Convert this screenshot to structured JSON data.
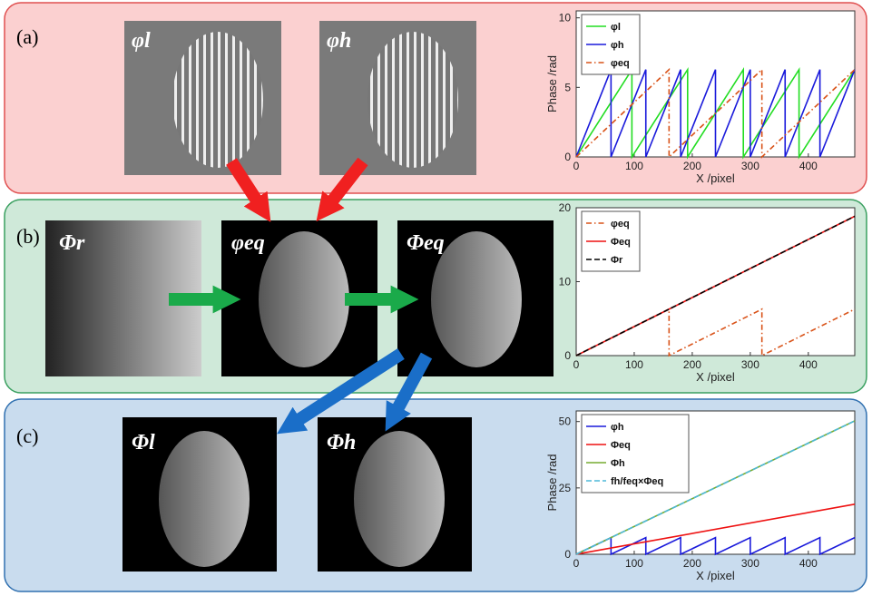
{
  "panels": [
    {
      "label": "(a)",
      "images": [
        "φl",
        "φh"
      ]
    },
    {
      "label": "(b)",
      "images": [
        "Φr",
        "φeq",
        "Φeq"
      ]
    },
    {
      "label": "(c)",
      "images": [
        "Φl",
        "Φh"
      ]
    }
  ],
  "chart_data": [
    {
      "type": "line",
      "xlabel": "X /pixel",
      "ylabel": "Phase /rad",
      "xlim": [
        0,
        480
      ],
      "ylim": [
        0,
        10.5
      ],
      "xticks": [
        0,
        100,
        200,
        300,
        400
      ],
      "yticks": [
        0,
        5,
        10
      ],
      "series": [
        {
          "name": "φl",
          "color": "#22dd22",
          "style": "solid",
          "x": [
            0,
            96,
            96,
            192,
            192,
            288,
            288,
            384,
            384,
            480
          ],
          "values": [
            0,
            6.28,
            0,
            6.28,
            0,
            6.28,
            0,
            6.28,
            0,
            6.28
          ]
        },
        {
          "name": "φh",
          "color": "#1a1adb",
          "style": "solid",
          "x": [
            0,
            60,
            60,
            120,
            120,
            180,
            180,
            240,
            240,
            300,
            300,
            360,
            360,
            420,
            420,
            480
          ],
          "values": [
            0,
            6.28,
            0,
            6.28,
            0,
            6.28,
            0,
            6.28,
            0,
            6.28,
            0,
            6.28,
            0,
            6.28,
            0,
            6.28
          ]
        },
        {
          "name": "φeq",
          "color": "#d95319",
          "style": "dashdot",
          "x": [
            0,
            160,
            160,
            320,
            320,
            480
          ],
          "values": [
            0,
            6.28,
            0,
            6.28,
            0,
            6.28
          ]
        }
      ]
    },
    {
      "type": "line",
      "xlabel": "X /pixel",
      "xlim": [
        0,
        480
      ],
      "ylim": [
        0,
        20
      ],
      "xticks": [
        0,
        100,
        200,
        300,
        400
      ],
      "yticks": [
        0,
        10,
        20
      ],
      "series": [
        {
          "name": "φeq",
          "color": "#d95319",
          "style": "dashdot",
          "x": [
            0,
            160,
            160,
            320,
            320,
            480
          ],
          "values": [
            0,
            6.28,
            0,
            6.28,
            0,
            6.28
          ]
        },
        {
          "name": "Φeq",
          "color": "#ee1111",
          "style": "solid",
          "x": [
            0,
            480
          ],
          "values": [
            0,
            18.85
          ]
        },
        {
          "name": "Φr",
          "color": "#000000",
          "style": "dashed",
          "x": [
            0,
            480
          ],
          "values": [
            0,
            18.85
          ]
        }
      ]
    },
    {
      "type": "line",
      "xlabel": "X /pixel",
      "ylabel": "Phase /rad",
      "xlim": [
        0,
        480
      ],
      "ylim": [
        0,
        54
      ],
      "xticks": [
        0,
        100,
        200,
        300,
        400
      ],
      "yticks": [
        0,
        25,
        50
      ],
      "series": [
        {
          "name": "φh",
          "color": "#1a1adb",
          "style": "solid",
          "x": [
            0,
            60,
            60,
            120,
            120,
            180,
            180,
            240,
            240,
            300,
            300,
            360,
            360,
            420,
            420,
            480
          ],
          "values": [
            0,
            6.28,
            0,
            6.28,
            0,
            6.28,
            0,
            6.28,
            0,
            6.28,
            0,
            6.28,
            0,
            6.28,
            0,
            6.28
          ]
        },
        {
          "name": "Φeq",
          "color": "#ee1111",
          "style": "solid",
          "x": [
            0,
            480
          ],
          "values": [
            0,
            18.85
          ]
        },
        {
          "name": "Φh",
          "color": "#77ac30",
          "style": "solid",
          "x": [
            0,
            480
          ],
          "values": [
            0,
            50.27
          ]
        },
        {
          "name": "fh/feq×Φeq",
          "color": "#4db8d8",
          "style": "dashed",
          "x": [
            0,
            480
          ],
          "values": [
            0,
            50.27
          ]
        }
      ]
    }
  ]
}
